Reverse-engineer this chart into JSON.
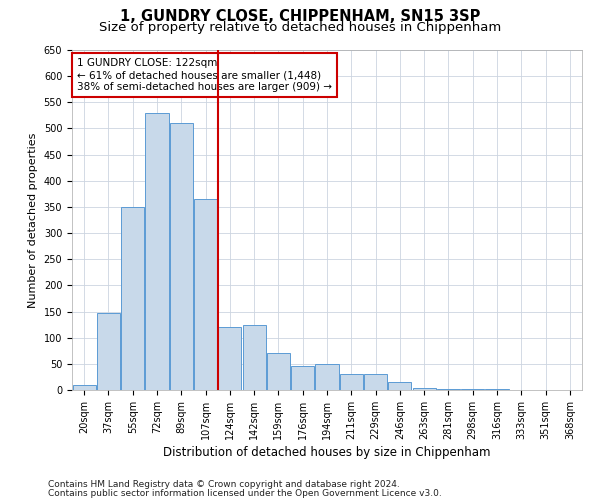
{
  "title": "1, GUNDRY CLOSE, CHIPPENHAM, SN15 3SP",
  "subtitle": "Size of property relative to detached houses in Chippenham",
  "xlabel": "Distribution of detached houses by size in Chippenham",
  "ylabel": "Number of detached properties",
  "categories": [
    "20sqm",
    "37sqm",
    "55sqm",
    "72sqm",
    "89sqm",
    "107sqm",
    "124sqm",
    "142sqm",
    "159sqm",
    "176sqm",
    "194sqm",
    "211sqm",
    "229sqm",
    "246sqm",
    "263sqm",
    "281sqm",
    "298sqm",
    "316sqm",
    "333sqm",
    "351sqm",
    "368sqm"
  ],
  "values": [
    10,
    148,
    350,
    530,
    510,
    365,
    120,
    125,
    70,
    45,
    50,
    30,
    30,
    15,
    3,
    2,
    2,
    1,
    0,
    0,
    0
  ],
  "bar_color": "#c8d9ea",
  "bar_edge_color": "#5b9bd5",
  "vline_x_index": 6,
  "vline_color": "#cc0000",
  "annotation_text": "1 GUNDRY CLOSE: 122sqm\n← 61% of detached houses are smaller (1,448)\n38% of semi-detached houses are larger (909) →",
  "annotation_box_edgecolor": "#cc0000",
  "ylim": [
    0,
    650
  ],
  "yticks": [
    0,
    50,
    100,
    150,
    200,
    250,
    300,
    350,
    400,
    450,
    500,
    550,
    600,
    650
  ],
  "footnote1": "Contains HM Land Registry data © Crown copyright and database right 2024.",
  "footnote2": "Contains public sector information licensed under the Open Government Licence v3.0.",
  "bg_color": "#ffffff",
  "grid_color": "#ccd5e0",
  "title_fontsize": 10.5,
  "subtitle_fontsize": 9.5,
  "xlabel_fontsize": 8.5,
  "ylabel_fontsize": 8,
  "tick_fontsize": 7,
  "annotation_fontsize": 7.5,
  "footnote_fontsize": 6.5
}
